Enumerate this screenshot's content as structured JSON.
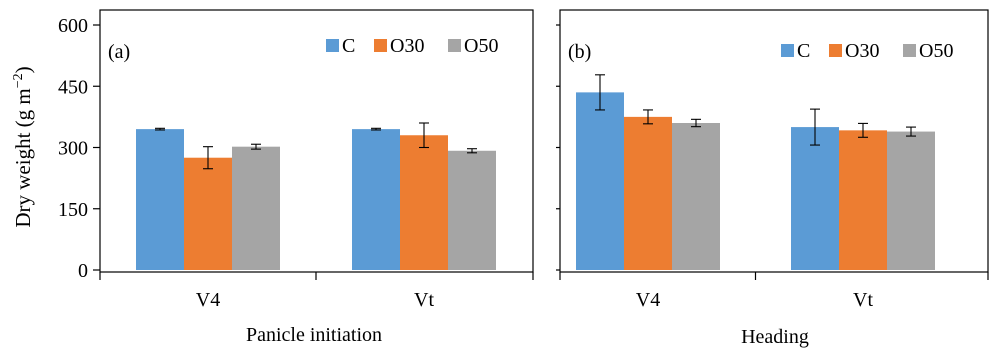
{
  "y_axis": {
    "label_main": "Dry weight (g m",
    "label_sup": "−2",
    "label_close": ")"
  },
  "legend_swatch_colors": [
    "#5B9BD5",
    "#ED7D31",
    "#A5A5A5"
  ],
  "chart_data": [
    {
      "type": "bar",
      "panel_label": "(a)",
      "xlabel": "Panicle initiation",
      "ylabel": "Dry weight (g m−2)",
      "categories": [
        "V4",
        "Vt"
      ],
      "series": [
        {
          "name": "C",
          "color": "#5B9BD5",
          "values": [
            345,
            345
          ],
          "errors": [
            2,
            2
          ]
        },
        {
          "name": "O30",
          "color": "#ED7D31",
          "values": [
            275,
            330
          ],
          "errors": [
            27,
            30
          ]
        },
        {
          "name": "O50",
          "color": "#A5A5A5",
          "values": [
            302,
            292
          ],
          "errors": [
            6,
            5
          ]
        }
      ],
      "ylim": [
        0,
        600
      ],
      "yticks": [
        0,
        150,
        300,
        450,
        600
      ],
      "legend_position": "top-right",
      "grid": false
    },
    {
      "type": "bar",
      "panel_label": "(b)",
      "xlabel": "Heading",
      "ylabel": "Dry weight (g m−2)",
      "categories": [
        "V4",
        "Vt"
      ],
      "series": [
        {
          "name": "C",
          "color": "#5B9BD5",
          "values": [
            435,
            350
          ],
          "errors": [
            43,
            44
          ]
        },
        {
          "name": "O30",
          "color": "#ED7D31",
          "values": [
            375,
            342
          ],
          "errors": [
            17,
            17
          ]
        },
        {
          "name": "O50",
          "color": "#A5A5A5",
          "values": [
            360,
            339
          ],
          "errors": [
            9,
            11
          ]
        }
      ],
      "ylim": [
        0,
        600
      ],
      "yticks": [
        0,
        150,
        300,
        450,
        600
      ],
      "legend_position": "top-right",
      "grid": false
    }
  ]
}
